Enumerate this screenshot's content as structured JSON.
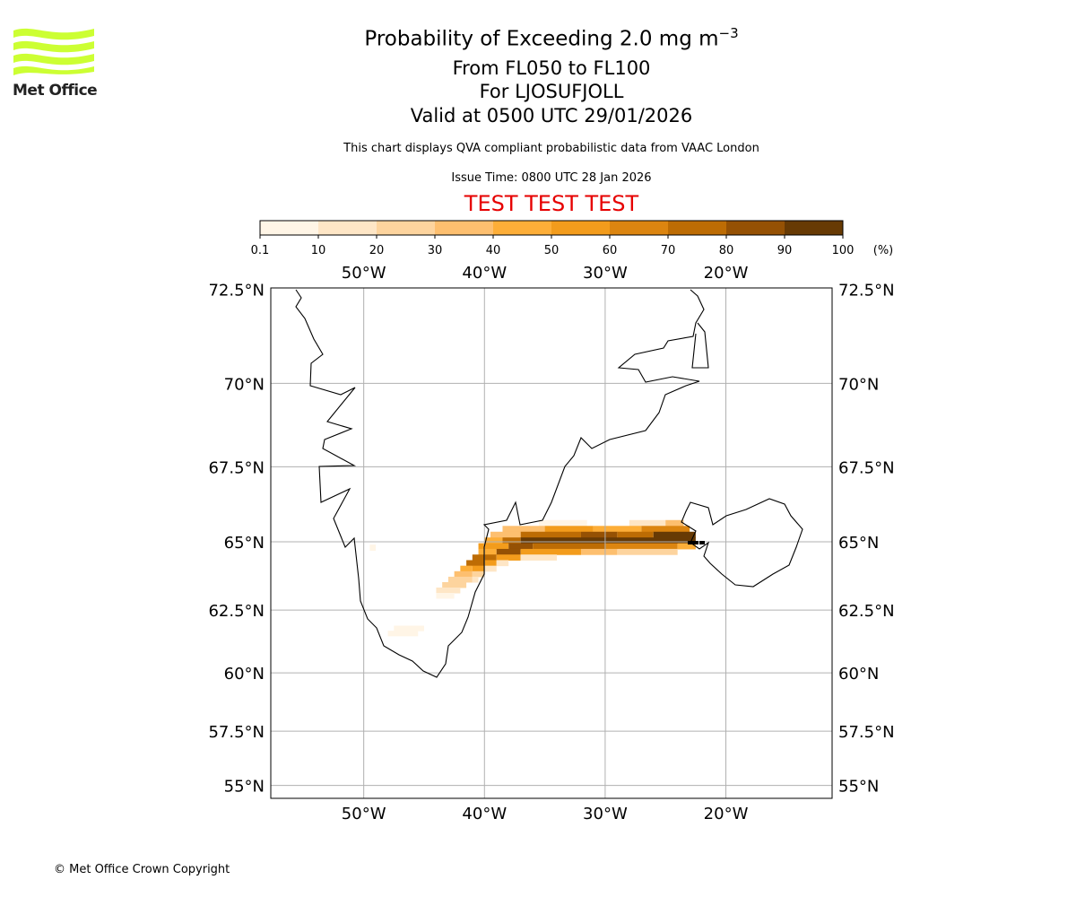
{
  "header": {
    "title": "Probability of Exceeding 2.0 mg m",
    "title_sup": "−3",
    "levels": "From FL050 to FL100",
    "volcano": "For LJOSUFJOLL",
    "valid": "Valid at 0500 UTC 29/01/2026",
    "description": "This chart displays QVA compliant probabilistic data from VAAC London",
    "issue_time": "Issue Time: 0800 UTC 28 Jan 2026",
    "test_banner": "TEST TEST TEST"
  },
  "logo": {
    "text": "Met Office",
    "color": "#ccff33"
  },
  "footer": {
    "copyright": "© Met Office Crown Copyright"
  },
  "chart_data": {
    "type": "heatmap",
    "title": "Probability of Exceeding 2.0 mg m-3",
    "colorbar": {
      "ticks": [
        "0.1",
        "10",
        "20",
        "30",
        "40",
        "50",
        "60",
        "70",
        "80",
        "90",
        "100"
      ],
      "bounds": [
        0.1,
        10,
        20,
        30,
        40,
        50,
        60,
        70,
        80,
        90,
        100
      ],
      "unit": "(%)",
      "colors": [
        "#fff5e6",
        "#fee6c6",
        "#fdd49e",
        "#fdbf6f",
        "#fdae38",
        "#f39c1c",
        "#dc8510",
        "#bd6c04",
        "#955104",
        "#673a04"
      ]
    },
    "lon_range": [
      -57.7,
      -11.2
    ],
    "lat_range": [
      54.7,
      72.6
    ],
    "lon_ticks": [
      {
        "v": -50,
        "label": "50°W"
      },
      {
        "v": -40,
        "label": "40°W"
      },
      {
        "v": -30,
        "label": "30°W"
      },
      {
        "v": -20,
        "label": "20°W"
      }
    ],
    "lat_ticks": [
      {
        "v": 72.5,
        "label": "72.5°N"
      },
      {
        "v": 70,
        "label": "70°N"
      },
      {
        "v": 67.5,
        "label": "67.5°N"
      },
      {
        "v": 65,
        "label": "65°N"
      },
      {
        "v": 62.5,
        "label": "62.5°N"
      },
      {
        "v": 60,
        "label": "60°N"
      },
      {
        "v": 57.5,
        "label": "57.5°N"
      },
      {
        "v": 55,
        "label": "55°N"
      }
    ],
    "grid": true,
    "cells": [
      [
        65.65,
        -35.5,
        -31.5,
        5
      ],
      [
        65.65,
        -28,
        -25,
        15
      ],
      [
        65.65,
        -25,
        -23.5,
        35
      ],
      [
        65.45,
        -38.5,
        -35,
        35
      ],
      [
        65.45,
        -35,
        -31,
        55
      ],
      [
        65.45,
        -31,
        -27,
        45
      ],
      [
        65.45,
        -27,
        -23,
        65
      ],
      [
        65.25,
        -39.5,
        -37,
        35
      ],
      [
        65.25,
        -37,
        -32,
        75
      ],
      [
        65.25,
        -32,
        -29,
        85
      ],
      [
        65.25,
        -29,
        -26,
        75
      ],
      [
        65.25,
        -26,
        -22.5,
        95
      ],
      [
        65.05,
        -40,
        -38.5,
        45
      ],
      [
        65.05,
        -38.5,
        -37,
        75
      ],
      [
        65.05,
        -37,
        -22.5,
        95
      ],
      [
        64.85,
        -40.5,
        -38,
        55
      ],
      [
        64.85,
        -38,
        -36,
        85
      ],
      [
        64.85,
        -36,
        -30,
        75
      ],
      [
        64.85,
        -30,
        -24,
        65
      ],
      [
        64.85,
        -24,
        -22.5,
        45
      ],
      [
        64.65,
        -40.5,
        -39,
        45
      ],
      [
        64.65,
        -39,
        -37,
        85
      ],
      [
        64.65,
        -37,
        -32,
        55
      ],
      [
        64.65,
        -32,
        -29,
        35
      ],
      [
        64.65,
        -29,
        -24,
        25
      ],
      [
        64.45,
        -41,
        -39,
        75
      ],
      [
        64.45,
        -39,
        -37,
        55
      ],
      [
        64.45,
        -37,
        -34,
        15
      ],
      [
        64.25,
        -41.5,
        -40,
        75
      ],
      [
        64.25,
        -40,
        -39,
        55
      ],
      [
        64.25,
        -39,
        -38,
        15
      ],
      [
        64.05,
        -42,
        -41,
        45
      ],
      [
        64.05,
        -41,
        -40,
        55
      ],
      [
        64.05,
        -40,
        -39,
        15
      ],
      [
        63.85,
        -42.5,
        -41,
        35
      ],
      [
        63.85,
        -41,
        -40,
        25
      ],
      [
        63.65,
        -43,
        -41,
        25
      ],
      [
        63.65,
        -41,
        -40.5,
        15
      ],
      [
        63.45,
        -43.5,
        -41.5,
        25
      ],
      [
        63.25,
        -44,
        -42,
        15
      ],
      [
        63.05,
        -44,
        -42.5,
        5
      ],
      [
        61.8,
        -47.5,
        -45,
        5
      ],
      [
        61.6,
        -48,
        -45.5,
        5
      ],
      [
        64.8,
        -49.5,
        -49,
        5
      ]
    ]
  }
}
